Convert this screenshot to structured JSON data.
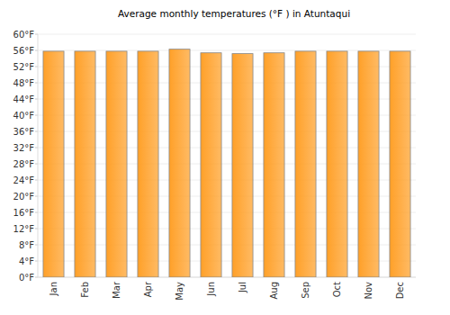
{
  "chart_data": {
    "type": "bar",
    "title": "Average monthly temperatures (°F ) in Atuntaqui",
    "categories": [
      "Jan",
      "Feb",
      "Mar",
      "Apr",
      "May",
      "Jun",
      "Jul",
      "Aug",
      "Sep",
      "Oct",
      "Nov",
      "Dec"
    ],
    "values": [
      55.8,
      55.8,
      55.8,
      55.8,
      56.3,
      55.4,
      55.2,
      55.4,
      55.8,
      55.8,
      55.8,
      55.8
    ],
    "color": "#ffa028",
    "ylim": [
      0,
      60
    ],
    "yticks": [
      {
        "value": 0,
        "label": "0°F"
      },
      {
        "value": 4,
        "label": "4°F"
      },
      {
        "value": 8,
        "label": "8°F"
      },
      {
        "value": 12,
        "label": "12°F"
      },
      {
        "value": 16,
        "label": "16°F"
      },
      {
        "value": 20,
        "label": "20°F"
      },
      {
        "value": 24,
        "label": "24°F"
      },
      {
        "value": 28,
        "label": "28°F"
      },
      {
        "value": 32,
        "label": "32°F"
      },
      {
        "value": 36,
        "label": "36°F"
      },
      {
        "value": 40,
        "label": "40°F"
      },
      {
        "value": 44,
        "label": "44°F"
      },
      {
        "value": 48,
        "label": "48°F"
      },
      {
        "value": 52,
        "label": "52°F"
      },
      {
        "value": 56,
        "label": "56°F"
      },
      {
        "value": 60,
        "label": "60°F"
      }
    ],
    "grid": true
  }
}
